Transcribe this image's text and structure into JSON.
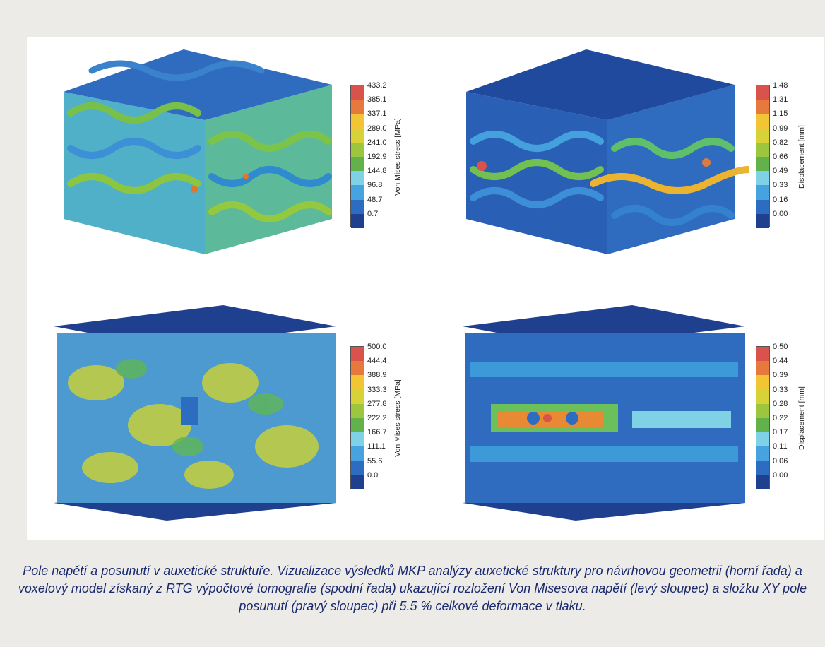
{
  "panels": {
    "top_left": {
      "axis_title": "Von Mises stress [MPa]",
      "ticks": [
        "433.2",
        "385.1",
        "337.1",
        "289.0",
        "241.0",
        "192.9",
        "144.8",
        "96.8",
        "48.7",
        "0.7"
      ]
    },
    "top_right": {
      "axis_title": "Displacement [mm]",
      "ticks": [
        "1.48",
        "1.31",
        "1.15",
        "0.99",
        "0.82",
        "0.66",
        "0.49",
        "0.33",
        "0.16",
        "0.00"
      ]
    },
    "bottom_left": {
      "axis_title": "Von Mises stress [MPa]",
      "ticks": [
        "500.0",
        "444.4",
        "388.9",
        "333.3",
        "277.8",
        "222.2",
        "166.7",
        "111.1",
        "55.6",
        "0.0"
      ]
    },
    "bottom_right": {
      "axis_title": "Displacement [mm]",
      "ticks": [
        "0.50",
        "0.44",
        "0.39",
        "0.33",
        "0.28",
        "0.22",
        "0.17",
        "0.11",
        "0.06",
        "0.00"
      ]
    }
  },
  "colormap": [
    "#d9534a",
    "#e8793e",
    "#f1c534",
    "#d6d237",
    "#9cc63e",
    "#62b24b",
    "#7fd1e6",
    "#46a3e0",
    "#2c6dc2",
    "#1f3f8f"
  ],
  "caption": "Pole napětí a posunutí v auxetické struktuře. Vizualizace výsledků MKP analýzy auxetické struktury pro návrhovou geometrii (horní řada) a voxelový model získaný z RTG výpočtové tomografie (spodní řada) ukazující rozložení Von Misesova napětí (levý sloupec) a složku XY pole posunutí (pravý sloupec) při 5.5 % celkové deformace v tlaku."
}
